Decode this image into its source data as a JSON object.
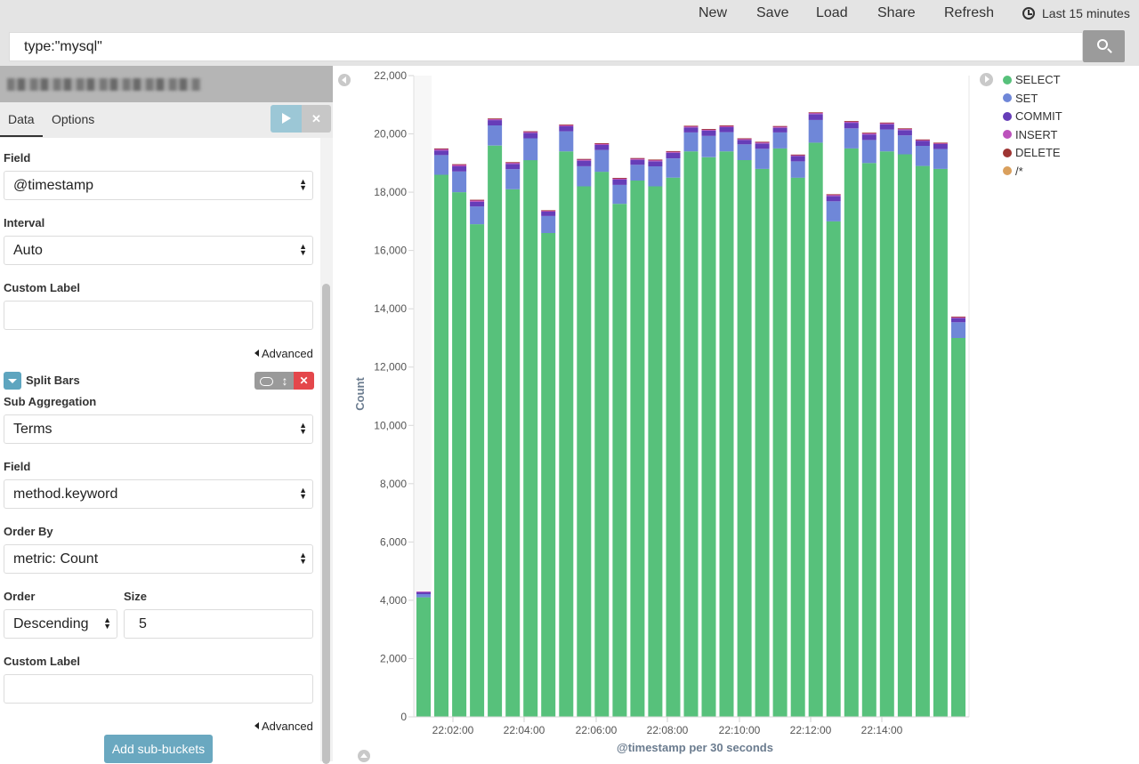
{
  "topnav": {
    "new_label": "New",
    "save_label": "Save",
    "load_label": "Load",
    "share_label": "Share",
    "refresh_label": "Refresh",
    "time_label": "Last 15 minutes"
  },
  "search": {
    "value": "type:\"mysql\""
  },
  "sidebar": {
    "tabs": [
      "Data",
      "Options"
    ],
    "field_label": "Field",
    "field_value": "@timestamp",
    "interval_label": "Interval",
    "interval_value": "Auto",
    "custom_label": "Custom Label",
    "advanced": "Advanced",
    "split_bars": "Split Bars",
    "sub_agg_label": "Sub Aggregation",
    "sub_agg_value": "Terms",
    "field2_label": "Field",
    "field2_value": "method.keyword",
    "order_by_label": "Order By",
    "order_by_value": "metric: Count",
    "order_label": "Order",
    "order_value": "Descending",
    "size_label": "Size",
    "size_value": "5",
    "custom_label2": "Custom Label",
    "advanced2": "Advanced",
    "add_sub_buckets": "Add sub-buckets"
  },
  "colors": {
    "SELECT": "#57c17b",
    "SET": "#6f87d8",
    "COMMIT": "#663db8",
    "INSERT": "#bc52bc",
    "DELETE": "#9e3533",
    "/*": "#daa05d"
  },
  "chart_data": {
    "type": "bar",
    "stacked": true,
    "ylabel": "Count",
    "xlabel": "@timestamp per 30 seconds",
    "ylim": [
      0,
      22000
    ],
    "yticks": [
      "0",
      "2,000",
      "4,000",
      "6,000",
      "8,000",
      "10,000",
      "12,000",
      "14,000",
      "16,000",
      "18,000",
      "20,000",
      "22,000"
    ],
    "xticks": [
      "22:02:00",
      "22:04:00",
      "22:06:00",
      "22:08:00",
      "22:10:00",
      "22:12:00",
      "22:14:00"
    ],
    "legend": [
      "SELECT",
      "SET",
      "COMMIT",
      "INSERT",
      "DELETE",
      "/*"
    ],
    "series": [
      {
        "name": "SELECT",
        "values": [
          4100,
          18600,
          18000,
          16900,
          19600,
          18100,
          19100,
          16600,
          19400,
          18200,
          18700,
          17600,
          18400,
          18200,
          18500,
          19400,
          19200,
          19400,
          19100,
          18800,
          19500,
          18500,
          19700,
          17000,
          19500,
          19000,
          19400,
          19300,
          18900,
          18800,
          13000
        ]
      },
      {
        "name": "SET",
        "values": [
          110,
          670,
          710,
          610,
          690,
          690,
          750,
          580,
          690,
          690,
          750,
          650,
          540,
          690,
          660,
          650,
          730,
          660,
          540,
          690,
          550,
          560,
          780,
          690,
          690,
          790,
          750,
          650,
          690,
          680,
          540
        ]
      },
      {
        "name": "COMMIT",
        "values": [
          70,
          160,
          180,
          160,
          180,
          180,
          180,
          150,
          170,
          190,
          170,
          180,
          170,
          170,
          190,
          170,
          180,
          170,
          150,
          180,
          160,
          180,
          200,
          180,
          190,
          190,
          180,
          180,
          170,
          170,
          140
        ]
      },
      {
        "name": "INSERT",
        "values": [
          20,
          60,
          60,
          60,
          50,
          50,
          50,
          40,
          50,
          50,
          50,
          50,
          50,
          50,
          50,
          50,
          50,
          50,
          50,
          50,
          50,
          40,
          50,
          50,
          50,
          50,
          50,
          50,
          40,
          40,
          40
        ]
      },
      {
        "name": "DELETE",
        "values": [
          0,
          10,
          10,
          10,
          10,
          10,
          10,
          10,
          10,
          10,
          10,
          10,
          10,
          10,
          10,
          10,
          10,
          10,
          10,
          10,
          10,
          10,
          10,
          10,
          10,
          10,
          10,
          10,
          10,
          10,
          10
        ]
      },
      {
        "name": "/*",
        "values": [
          0,
          0,
          0,
          0,
          0,
          0,
          0,
          0,
          0,
          0,
          0,
          0,
          0,
          0,
          0,
          0,
          0,
          0,
          0,
          0,
          0,
          0,
          0,
          0,
          0,
          0,
          0,
          0,
          0,
          0,
          0
        ]
      }
    ]
  }
}
